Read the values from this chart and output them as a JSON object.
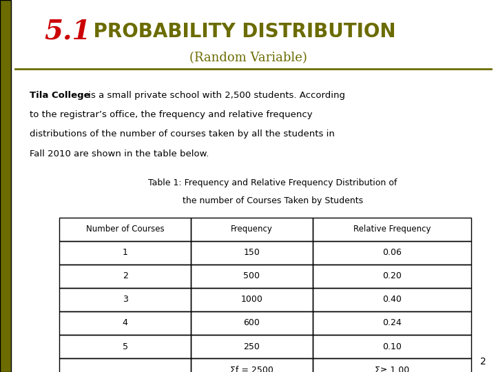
{
  "title_51": "5.1",
  "title_main": " PROBABILITY DISTRIBUTION",
  "title_sub": "(Random Variable)",
  "title_51_color": "#cc0000",
  "title_main_color": "#6b6b00",
  "title_sub_color": "#6b6b00",
  "sidebar_color": "#6b6b00",
  "line_color": "#6b6b00",
  "body_text_bold": "Tila College",
  "body_lines": [
    " is a small private school with 2,500 students. According",
    "to the registrar’s office, the frequency and relative frequency",
    "distributions of the number of courses taken by all the students in",
    "Fall 2010 are shown in the table below."
  ],
  "table_caption_line1": "Table 1: Frequency and Relative Frequency Distribution of",
  "table_caption_line2": "the number of Courses Taken by Students",
  "col_headers": [
    "Number of Courses",
    "Frequency",
    "Relative Frequency"
  ],
  "table_rows": [
    [
      "1",
      "150",
      "0.06"
    ],
    [
      "2",
      "500",
      "0.20"
    ],
    [
      "3",
      "1000",
      "0.40"
    ],
    [
      "4",
      "600",
      "0.24"
    ],
    [
      "5",
      "250",
      "0.10"
    ],
    [
      "",
      "Σf = 2500",
      "Σ≥ 1.00"
    ]
  ],
  "page_number": "2",
  "bg_color": "#ffffff"
}
